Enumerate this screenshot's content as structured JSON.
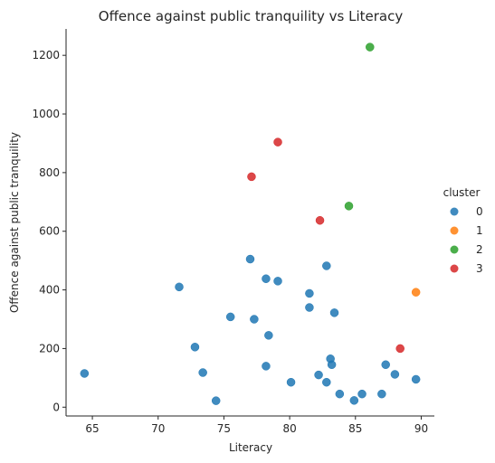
{
  "chart_data": {
    "type": "scatter",
    "title": "Offence against public tranquility vs Literacy",
    "xlabel": "Literacy",
    "ylabel": "Offence against public tranquility",
    "xlim": [
      63,
      91
    ],
    "ylim": [
      -30,
      1290
    ],
    "xticks": [
      65,
      70,
      75,
      80,
      85,
      90
    ],
    "yticks": [
      0,
      200,
      400,
      600,
      800,
      1000,
      1200
    ],
    "grid": false,
    "legend": {
      "title": "cluster",
      "position": "right"
    },
    "colors": {
      "0": "#1f77b4",
      "1": "#ff7f0e",
      "2": "#2ca02c",
      "3": "#d62728"
    },
    "series": [
      {
        "name": "0",
        "points": [
          [
            64.4,
            115
          ],
          [
            71.6,
            410
          ],
          [
            72.8,
            205
          ],
          [
            73.4,
            118
          ],
          [
            74.4,
            22
          ],
          [
            75.5,
            308
          ],
          [
            77.0,
            505
          ],
          [
            77.3,
            300
          ],
          [
            78.2,
            438
          ],
          [
            78.2,
            140
          ],
          [
            78.4,
            245
          ],
          [
            79.1,
            430
          ],
          [
            80.1,
            85
          ],
          [
            81.5,
            388
          ],
          [
            81.5,
            340
          ],
          [
            82.2,
            110
          ],
          [
            82.8,
            482
          ],
          [
            82.8,
            85
          ],
          [
            83.1,
            165
          ],
          [
            83.2,
            145
          ],
          [
            83.4,
            322
          ],
          [
            83.8,
            45
          ],
          [
            84.9,
            23
          ],
          [
            85.5,
            45
          ],
          [
            87.0,
            45
          ],
          [
            87.3,
            145
          ],
          [
            88.0,
            112
          ],
          [
            89.6,
            95
          ]
        ]
      },
      {
        "name": "1",
        "points": [
          [
            89.6,
            392
          ]
        ]
      },
      {
        "name": "2",
        "points": [
          [
            86.1,
            1228
          ],
          [
            84.5,
            686
          ]
        ]
      },
      {
        "name": "3",
        "points": [
          [
            79.1,
            904
          ],
          [
            77.1,
            786
          ],
          [
            82.3,
            637
          ],
          [
            88.4,
            200
          ]
        ]
      }
    ]
  }
}
